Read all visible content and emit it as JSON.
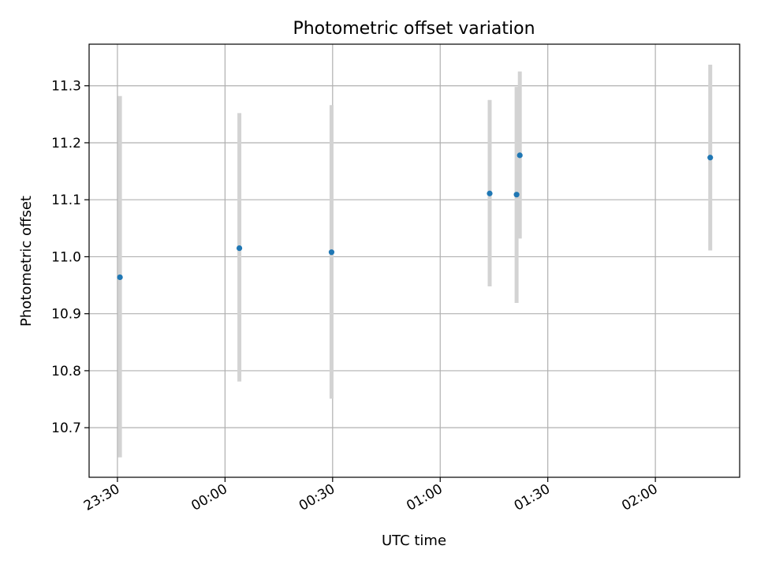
{
  "chart_data": {
    "type": "scatter",
    "title": "Photometric offset variation",
    "xlabel": "UTC time",
    "ylabel": "Photometric offset",
    "grid": true,
    "x_ticks": [
      "23:30",
      "00:00",
      "00:30",
      "01:00",
      "01:30",
      "02:00"
    ],
    "x_tick_minutes": [
      -30,
      0,
      30,
      60,
      90,
      120
    ],
    "xlim_minutes": [
      -37.9,
      143.5
    ],
    "y_ticks": [
      "10.7",
      "10.8",
      "10.9",
      "11.0",
      "11.1",
      "11.2",
      "11.3"
    ],
    "y_tick_values": [
      10.7,
      10.8,
      10.9,
      11.0,
      11.1,
      11.2,
      11.3
    ],
    "ylim": [
      10.613,
      11.373
    ],
    "series": [
      {
        "marker_color": "#1f77b4",
        "errorbar_color": "#d3d3d3",
        "points": [
          {
            "time": "23:30:40",
            "x_minutes": -29.3,
            "y": 10.964,
            "err_low": 10.648,
            "err_high": 11.282
          },
          {
            "time": "00:04:00",
            "x_minutes": 4.0,
            "y": 11.015,
            "err_low": 10.781,
            "err_high": 11.252
          },
          {
            "time": "00:29:40",
            "x_minutes": 29.7,
            "y": 11.008,
            "err_low": 10.751,
            "err_high": 11.266
          },
          {
            "time": "01:13:50",
            "x_minutes": 73.8,
            "y": 11.111,
            "err_low": 10.948,
            "err_high": 11.275
          },
          {
            "time": "01:21:20",
            "x_minutes": 81.3,
            "y": 11.109,
            "err_low": 10.919,
            "err_high": 11.298
          },
          {
            "time": "01:22:10",
            "x_minutes": 82.2,
            "y": 11.178,
            "err_low": 11.032,
            "err_high": 11.325
          },
          {
            "time": "02:15:20",
            "x_minutes": 135.3,
            "y": 11.174,
            "err_low": 11.011,
            "err_high": 11.337
          }
        ]
      }
    ]
  }
}
